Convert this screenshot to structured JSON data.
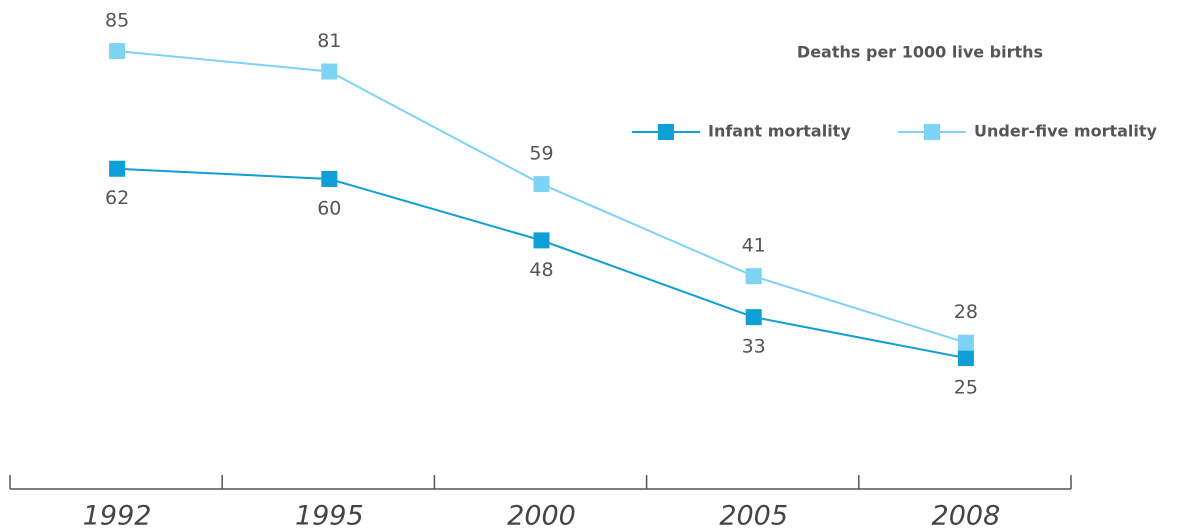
{
  "chart_data": {
    "type": "line",
    "annotation": "Deaths per 1000 live births",
    "categories": [
      "1992",
      "1995",
      "2000",
      "2005",
      "2008"
    ],
    "series": [
      {
        "name": "Infant mortality",
        "color": "#0e9fd6",
        "values": [
          62,
          60,
          48,
          33,
          25
        ]
      },
      {
        "name": "Under-five mortality",
        "color": "#7dd3f4",
        "values": [
          85,
          81,
          59,
          41,
          28
        ]
      }
    ],
    "legend": "top-right"
  }
}
